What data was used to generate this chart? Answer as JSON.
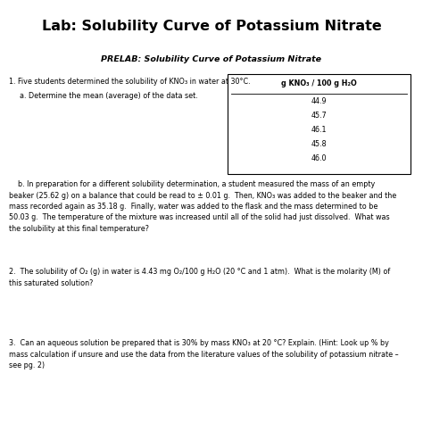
{
  "title": "Lab: Solubility Curve of Potassium Nitrate",
  "prelab_title": "PRELAB: Solubility Curve of Potassium Nitrate",
  "q1_text": "1. Five students determined the solubility of KNO₃ in water at 30°C.",
  "q1a_text": "a. Determine the mean (average) of the data set.",
  "table_header": "g KNO₃ / 100 g H₂O",
  "table_values": [
    "44.9",
    "45.7",
    "46.1",
    "45.8",
    "46.0"
  ],
  "q1b_text": "    b. In preparation for a different solubility determination, a student measured the mass of an empty\nbeaker (25.62 g) on a balance that could be read to ± 0.01 g.  Then, KNO₃ was added to the beaker and the\nmass recorded again as 35.18 g.  Finally, water was added to the flask and the mass determined to be\n50.03 g.  The temperature of the mixture was increased until all of the solid had just dissolved.  What was\nthe solubility at this final temperature?",
  "q2_text": "2.  The solubility of O₂ (g) in water is 4.43 mg O₂/100 g H₂O (20 °C and 1 atm).  What is the molarity (M) of\nthis saturated solution?",
  "q3_text": "3.  Can an aqueous solution be prepared that is 30% by mass KNO₃ at 20 °C? Explain. (Hint: Look up % by\nmass calculation if unsure and use the data from the literature values of the solubility of potassium nitrate –\nsee pg. 2)",
  "bg_color": "#ffffff",
  "text_color": "#000000",
  "title_fontsize": 11.5,
  "prelab_fontsize": 6.8,
  "body_fontsize": 5.8
}
